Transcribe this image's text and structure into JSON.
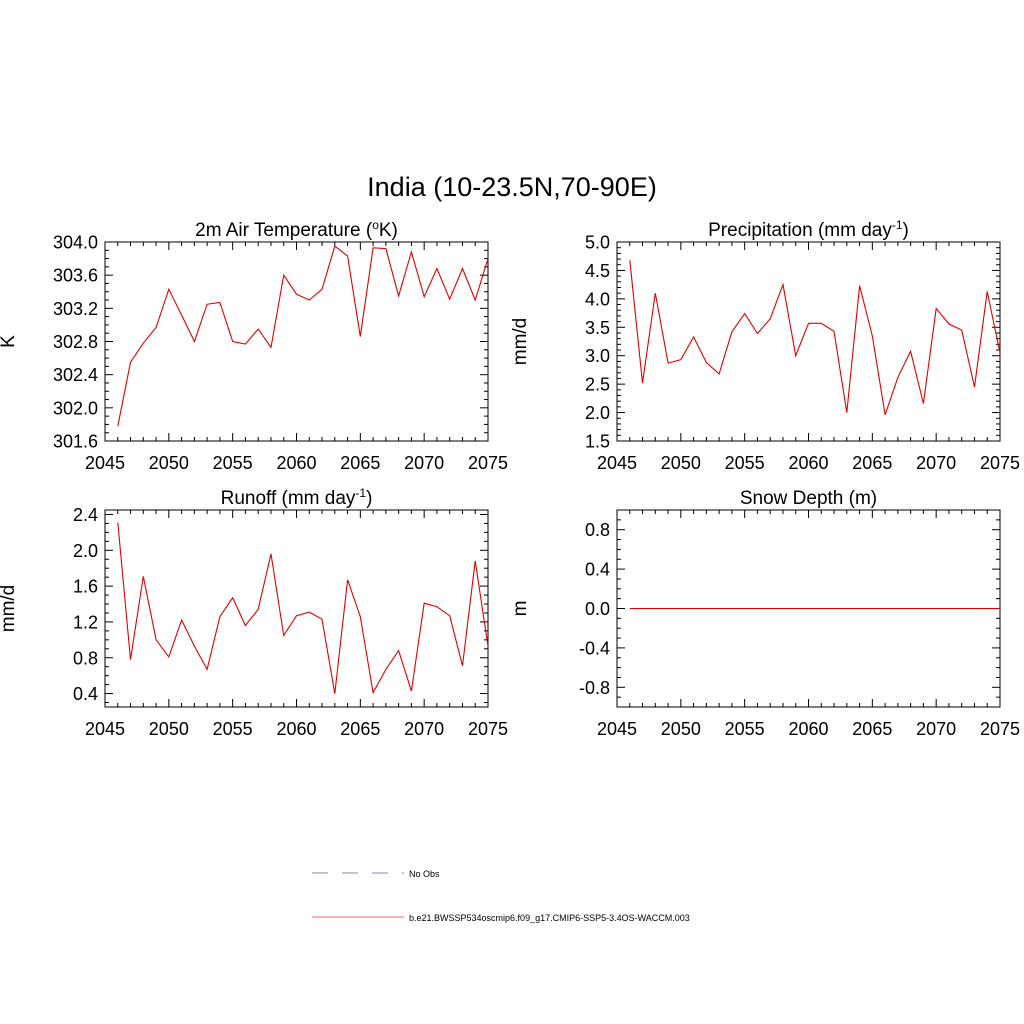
{
  "figure": {
    "title": "India (10-23.5N,70-90E)"
  },
  "colors": {
    "model_line": "#e00000",
    "obs_line": "#9a9ad8",
    "axis": "#000000"
  },
  "legend": {
    "obs_label": "No Obs",
    "model_label": "b.e21.BWSSP534oscmip6.f09_g17.CMIP6-SSP5-3.4OS-WACCM.003"
  },
  "chart_data": [
    {
      "id": "temp",
      "type": "line",
      "title": "2m Air Temperature (",
      "title_sup": "o",
      "title_after": "K)",
      "ylabel": "K",
      "xlim": [
        2045,
        2075
      ],
      "ylim": [
        301.6,
        304.0
      ],
      "xticks": [
        2045,
        2050,
        2055,
        2060,
        2065,
        2070,
        2075
      ],
      "xtick_labels": [
        "2045",
        "2050",
        "2055",
        "2060",
        "2065",
        "2070",
        "2075"
      ],
      "yticks": [
        301.6,
        302.0,
        302.4,
        302.8,
        303.2,
        303.6,
        304.0
      ],
      "ytick_labels": [
        "301.6",
        "302.0",
        "302.4",
        "302.8",
        "303.2",
        "303.6",
        "304.0"
      ],
      "yminor": 0.1,
      "x": [
        2046,
        2047,
        2048,
        2049,
        2050,
        2051,
        2052,
        2053,
        2054,
        2055,
        2056,
        2057,
        2058,
        2059,
        2060,
        2061,
        2062,
        2063,
        2064,
        2065,
        2066,
        2067,
        2068,
        2069,
        2070,
        2071,
        2072,
        2073,
        2074,
        2075
      ],
      "values": [
        301.78,
        302.55,
        302.78,
        302.97,
        303.43,
        303.12,
        302.8,
        303.25,
        303.27,
        302.8,
        302.77,
        302.95,
        302.73,
        303.6,
        303.37,
        303.3,
        303.43,
        303.95,
        303.83,
        302.86,
        303.93,
        303.92,
        303.35,
        303.88,
        303.34,
        303.68,
        303.31,
        303.68,
        303.3,
        303.8
      ]
    },
    {
      "id": "precip",
      "type": "line",
      "title": "Precipitation (mm day",
      "title_sup": "-1",
      "title_after": ")",
      "ylabel": "mm/d",
      "xlim": [
        2045,
        2075
      ],
      "ylim": [
        1.5,
        5.0
      ],
      "xticks": [
        2045,
        2050,
        2055,
        2060,
        2065,
        2070,
        2075
      ],
      "xtick_labels": [
        "2045",
        "2050",
        "2055",
        "2060",
        "2065",
        "2070",
        "2075"
      ],
      "yticks": [
        1.5,
        2.0,
        2.5,
        3.0,
        3.5,
        4.0,
        4.5,
        5.0
      ],
      "ytick_labels": [
        "1.5",
        "2.0",
        "2.5",
        "3.0",
        "3.5",
        "4.0",
        "4.5",
        "5.0"
      ],
      "yminor": 0.1,
      "x": [
        2046,
        2047,
        2048,
        2049,
        2050,
        2051,
        2052,
        2053,
        2054,
        2055,
        2056,
        2057,
        2058,
        2059,
        2060,
        2061,
        2062,
        2063,
        2064,
        2065,
        2066,
        2067,
        2068,
        2069,
        2070,
        2071,
        2072,
        2073,
        2074,
        2075
      ],
      "values": [
        4.68,
        2.52,
        4.1,
        2.87,
        2.93,
        3.33,
        2.88,
        2.68,
        3.42,
        3.74,
        3.39,
        3.65,
        4.25,
        3.0,
        3.57,
        3.57,
        3.43,
        2.0,
        4.23,
        3.35,
        1.96,
        2.62,
        3.08,
        2.16,
        3.83,
        3.56,
        3.45,
        2.45,
        4.13,
        3.05
      ]
    },
    {
      "id": "runoff",
      "type": "line",
      "title": "Runoff (mm day",
      "title_sup": "-1",
      "title_after": ")",
      "ylabel": "mm/d",
      "xlim": [
        2045,
        2075
      ],
      "ylim": [
        0.25,
        2.45
      ],
      "xticks": [
        2045,
        2050,
        2055,
        2060,
        2065,
        2070,
        2075
      ],
      "xtick_labels": [
        "2045",
        "2050",
        "2055",
        "2060",
        "2065",
        "2070",
        "2075"
      ],
      "yticks": [
        0.4,
        0.8,
        1.2,
        1.6,
        2.0,
        2.4
      ],
      "ytick_labels": [
        "0.4",
        "0.8",
        "1.2",
        "1.6",
        "2.0",
        "2.4"
      ],
      "yminor": 0.1,
      "x": [
        2046,
        2047,
        2048,
        2049,
        2050,
        2051,
        2052,
        2053,
        2054,
        2055,
        2056,
        2057,
        2058,
        2059,
        2060,
        2061,
        2062,
        2063,
        2064,
        2065,
        2066,
        2067,
        2068,
        2069,
        2070,
        2071,
        2072,
        2073,
        2074,
        2075
      ],
      "values": [
        2.31,
        0.78,
        1.71,
        1.0,
        0.81,
        1.22,
        0.93,
        0.67,
        1.26,
        1.47,
        1.16,
        1.34,
        1.96,
        1.05,
        1.27,
        1.31,
        1.23,
        0.4,
        1.67,
        1.26,
        0.41,
        0.67,
        0.88,
        0.43,
        1.41,
        1.37,
        1.27,
        0.71,
        1.88,
        0.93
      ]
    },
    {
      "id": "snow",
      "type": "line",
      "title": "Snow Depth (m)",
      "title_sup": "",
      "title_after": "",
      "ylabel": "m",
      "xlim": [
        2045,
        2075
      ],
      "ylim": [
        -1.0,
        1.0
      ],
      "xticks": [
        2045,
        2050,
        2055,
        2060,
        2065,
        2070,
        2075
      ],
      "xtick_labels": [
        "2045",
        "2050",
        "2055",
        "2060",
        "2065",
        "2070",
        "2075"
      ],
      "yticks": [
        -0.8,
        -0.4,
        0.0,
        0.4,
        0.8
      ],
      "ytick_labels": [
        "-0.8",
        "-0.4",
        "0.0",
        "0.4",
        "0.8"
      ],
      "yminor": 0.1,
      "x": [
        2046,
        2047,
        2048,
        2049,
        2050,
        2051,
        2052,
        2053,
        2054,
        2055,
        2056,
        2057,
        2058,
        2059,
        2060,
        2061,
        2062,
        2063,
        2064,
        2065,
        2066,
        2067,
        2068,
        2069,
        2070,
        2071,
        2072,
        2073,
        2074,
        2075
      ],
      "values": [
        0,
        0,
        0,
        0,
        0,
        0,
        0,
        0,
        0,
        0,
        0,
        0,
        0,
        0,
        0,
        0,
        0,
        0,
        0,
        0,
        0,
        0,
        0,
        0,
        0,
        0,
        0,
        0,
        0,
        0
      ]
    }
  ]
}
